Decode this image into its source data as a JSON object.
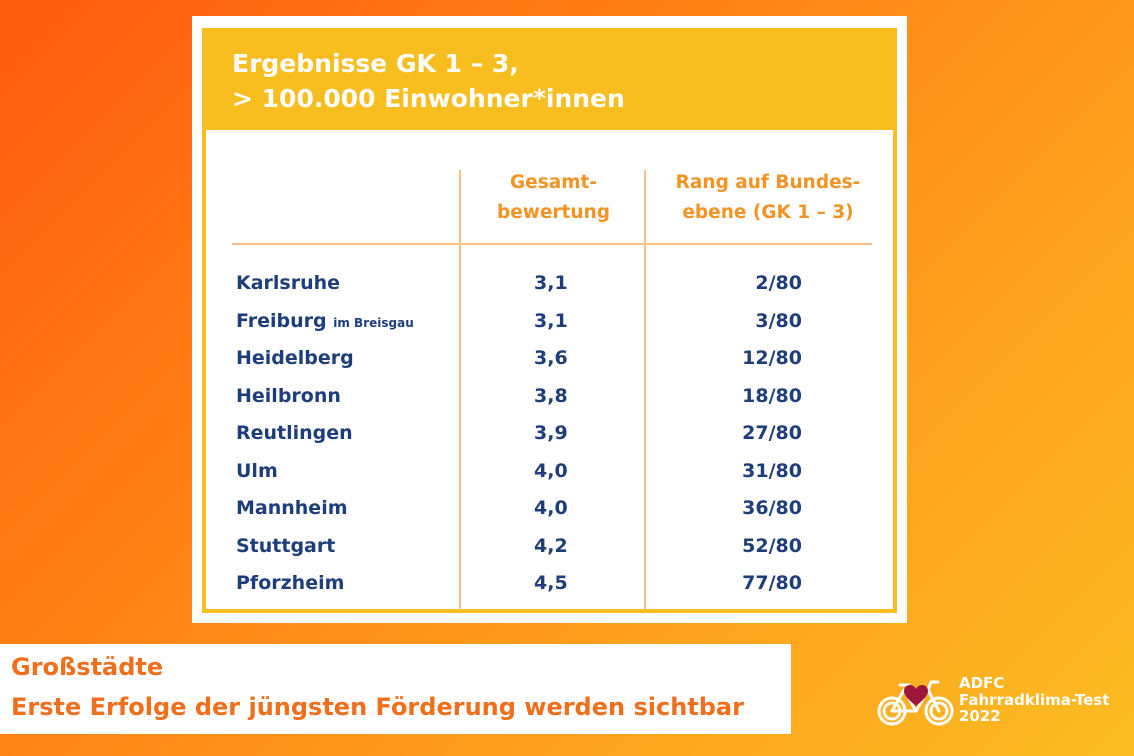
{
  "card": {
    "title_line1": "Ergebnisse GK 1 – 3,",
    "title_line2": "> 100.000 Einwohner*innen"
  },
  "table": {
    "headers": {
      "score_line1": "Gesamt-",
      "score_line2": "bewertung",
      "rank_line1": "Rang auf Bundes-",
      "rank_line2": "ebene (GK 1 – 3)"
    },
    "rows": [
      {
        "city": "Karlsruhe",
        "note": "",
        "score": "3,1",
        "rank": "2/80"
      },
      {
        "city": "Freiburg",
        "note": "im Breisgau",
        "score": "3,1",
        "rank": "3/80"
      },
      {
        "city": "Heidelberg",
        "note": "",
        "score": "3,6",
        "rank": "12/80"
      },
      {
        "city": "Heilbronn",
        "note": "",
        "score": "3,8",
        "rank": "18/80"
      },
      {
        "city": "Reutlingen",
        "note": "",
        "score": "3,9",
        "rank": "27/80"
      },
      {
        "city": "Ulm",
        "note": "",
        "score": "4,0",
        "rank": "31/80"
      },
      {
        "city": "Mannheim",
        "note": "",
        "score": "4,0",
        "rank": "36/80"
      },
      {
        "city": "Stuttgart",
        "note": "",
        "score": "4,2",
        "rank": "52/80"
      },
      {
        "city": "Pforzheim",
        "note": "",
        "score": "4,5",
        "rank": "77/80"
      }
    ]
  },
  "caption": {
    "title": "Großstädte",
    "subtitle": "Erste Erfolge der jüngsten Förderung werden sichtbar"
  },
  "logo": {
    "line1": "ADFC",
    "line2": "Fahrradklima-Test",
    "line3": "2022",
    "icon": "bicycle-heart-icon"
  },
  "colors": {
    "accent_yellow": "#f8bd1e",
    "header_orange": "#f39324",
    "text_navy": "#1e3d7b",
    "caption_orange": "#f06f1c",
    "heart_red": "#a0163a"
  }
}
